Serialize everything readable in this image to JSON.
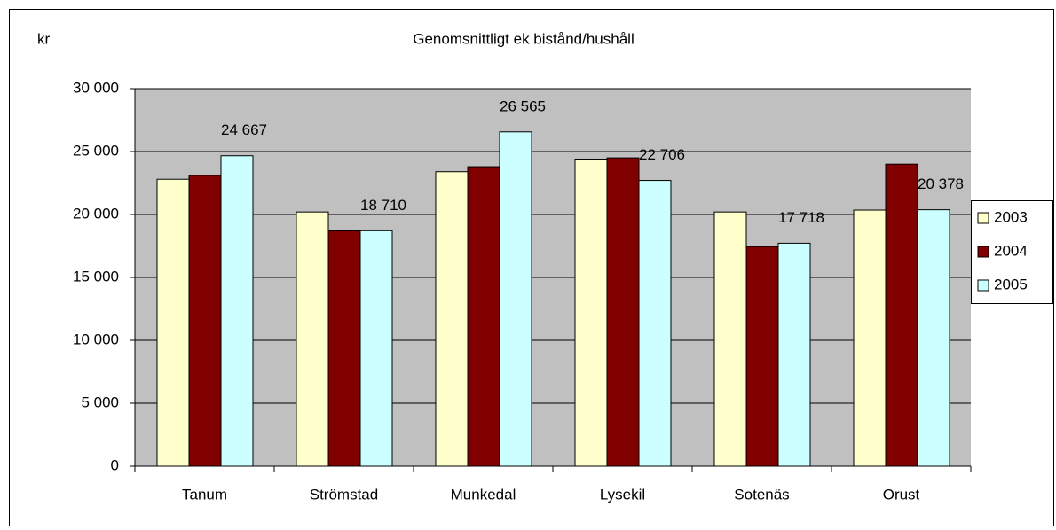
{
  "chart_data": {
    "type": "bar",
    "title": "Genomsnittligt ek bistånd/hushåll",
    "y_label": "kr",
    "categories": [
      "Tanum",
      "Strömstad",
      "Munkedal",
      "Lysekil",
      "Sotenäs",
      "Orust"
    ],
    "series": [
      {
        "name": "2003",
        "color": "#ffffcc",
        "values": [
          22800,
          20200,
          23400,
          24400,
          20200,
          20350
        ]
      },
      {
        "name": "2004",
        "color": "#800000",
        "values": [
          23100,
          18700,
          23800,
          24500,
          17450,
          24000
        ]
      },
      {
        "name": "2005",
        "color": "#ccffff",
        "values": [
          24667,
          18710,
          26565,
          22706,
          17718,
          20378
        ],
        "value_labels": [
          "24 667",
          "18 710",
          "26 565",
          "22 706",
          "17 718",
          "20 378"
        ]
      }
    ],
    "ylim": [
      0,
      30000
    ],
    "yticks": [
      0,
      {
        "value": 5000,
        "label": "5 000"
      },
      {
        "value": 10000,
        "label": "10 000"
      },
      {
        "value": 15000,
        "label": "15 000"
      },
      {
        "value": 20000,
        "label": "20 000"
      },
      {
        "value": 25000,
        "label": "25 000"
      },
      {
        "value": 30000,
        "label": "30 000"
      }
    ],
    "grid": true,
    "plot_background": "#c0c0c0",
    "legend": "right"
  }
}
